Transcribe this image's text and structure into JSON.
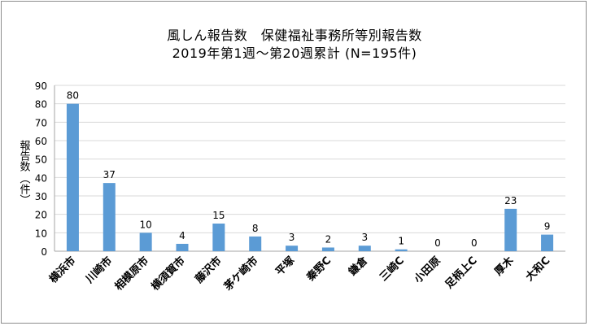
{
  "chart_data": {
    "type": "bar",
    "title": "風しん報告数　保健福祉事務所等別報告数",
    "subtitle": "2019年第1週～第20週累計 (N=195件)",
    "ylabel": "報告数（件）",
    "ylabel_main": "報告数",
    "ylabel_unit": "（件）",
    "xlabel": "",
    "categories": [
      "横浜市",
      "川崎市",
      "相模原市",
      "横須賀市",
      "藤沢市",
      "茅ケ崎市",
      "平塚",
      "秦野C",
      "鎌倉",
      "三崎C",
      "小田原",
      "足柄上C",
      "厚木",
      "大和C"
    ],
    "values": [
      80,
      37,
      10,
      4,
      15,
      8,
      3,
      2,
      3,
      1,
      0,
      0,
      23,
      9
    ],
    "ylim": [
      0,
      90
    ],
    "yticks": [
      0,
      10,
      20,
      30,
      40,
      50,
      60,
      70,
      80,
      90
    ],
    "grid": true,
    "legend": "none",
    "bar_color": "#5b9bd5"
  }
}
